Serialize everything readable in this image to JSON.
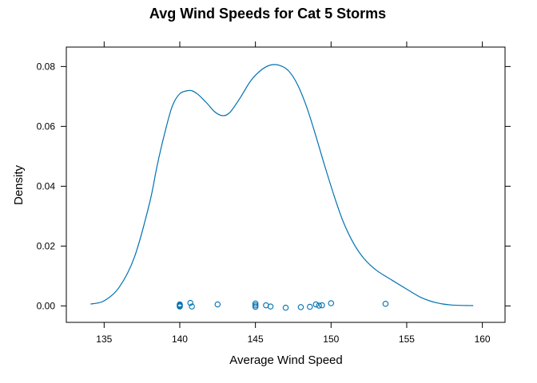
{
  "chart_data": {
    "type": "line",
    "title": "Avg Wind Speeds for Cat 5 Storms",
    "xlabel": "Average Wind Speed",
    "ylabel": "Density",
    "xlim": [
      132.5,
      161.5
    ],
    "ylim": [
      -0.0055,
      0.0865
    ],
    "x_ticks": [
      135,
      140,
      145,
      150,
      155,
      160
    ],
    "y_ticks": [
      0.0,
      0.02,
      0.04,
      0.06,
      0.08
    ],
    "x_tick_labels": [
      "135",
      "140",
      "145",
      "150",
      "155",
      "160"
    ],
    "y_tick_labels": [
      "0.00",
      "0.02",
      "0.04",
      "0.06",
      "0.08"
    ],
    "grid": false,
    "legend": "none",
    "colors": {
      "series": "#0072B2",
      "frame": "#000000"
    },
    "series": [
      {
        "kind": "density",
        "x": [
          134.1,
          135.0,
          136.0,
          137.0,
          138.0,
          138.5,
          139.0,
          139.5,
          140.0,
          140.5,
          140.8,
          141.2,
          141.8,
          142.3,
          142.8,
          143.3,
          144.0,
          144.7,
          145.4,
          146.0,
          146.6,
          147.2,
          147.8,
          148.4,
          149.0,
          149.6,
          150.2,
          150.8,
          151.5,
          152.2,
          153.0,
          154.0,
          155.0,
          156.0,
          157.0,
          158.0,
          159.4
        ],
        "y": [
          0.0006,
          0.0017,
          0.0063,
          0.0163,
          0.0343,
          0.0468,
          0.0577,
          0.0667,
          0.0709,
          0.0719,
          0.0719,
          0.0707,
          0.0677,
          0.0649,
          0.0636,
          0.0646,
          0.0696,
          0.0753,
          0.0789,
          0.0805,
          0.0804,
          0.0785,
          0.0738,
          0.0663,
          0.0567,
          0.0465,
          0.0368,
          0.0282,
          0.0208,
          0.0157,
          0.0119,
          0.0087,
          0.0056,
          0.0027,
          0.001,
          0.0003,
          0.0001
        ]
      }
    ],
    "rug_points": [
      {
        "x": 140.0,
        "y": 0.0
      },
      {
        "x": 140.0,
        "y": 0.0005
      },
      {
        "x": 140.0,
        "y": -0.0002
      },
      {
        "x": 140.0,
        "y": 0.0003
      },
      {
        "x": 140.7,
        "y": 0.001
      },
      {
        "x": 140.8,
        "y": -0.0002
      },
      {
        "x": 142.5,
        "y": 0.0005
      },
      {
        "x": 145.0,
        "y": 0.0008
      },
      {
        "x": 145.0,
        "y": 0.0002
      },
      {
        "x": 145.0,
        "y": -0.0003
      },
      {
        "x": 145.7,
        "y": 0.0002
      },
      {
        "x": 146.0,
        "y": -0.0002
      },
      {
        "x": 147.0,
        "y": -0.0006
      },
      {
        "x": 148.0,
        "y": -0.0004
      },
      {
        "x": 148.6,
        "y": -0.0003
      },
      {
        "x": 149.0,
        "y": 0.0005
      },
      {
        "x": 149.2,
        "y": 0.0001
      },
      {
        "x": 149.4,
        "y": 0.0002
      },
      {
        "x": 150.0,
        "y": 0.0009
      },
      {
        "x": 153.6,
        "y": 0.0007
      }
    ]
  }
}
